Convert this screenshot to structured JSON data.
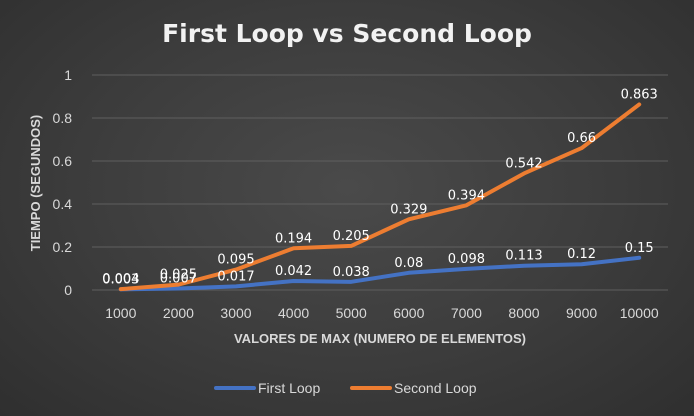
{
  "chart_data": {
    "type": "line",
    "title": "First Loop vs Second Loop",
    "xlabel": "VALORES DE MAX (NUMERO DE ELEMENTOS)",
    "ylabel": "TIEMPO (SEGUNDOS)",
    "categories": [
      "1000",
      "2000",
      "3000",
      "4000",
      "5000",
      "6000",
      "7000",
      "8000",
      "9000",
      "10000"
    ],
    "ylim": [
      0,
      1
    ],
    "yticks": [
      "0",
      "0.2",
      "0.4",
      "0.6",
      "0.8",
      "1"
    ],
    "grid": true,
    "legend_position": "bottom",
    "series": [
      {
        "name": "First Loop",
        "color": "#4472c4",
        "values": [
          0.003,
          0.007,
          0.017,
          0.042,
          0.038,
          0.08,
          0.098,
          0.113,
          0.12,
          0.15
        ],
        "labels": [
          "0.003",
          "0.007",
          "0.017",
          "0.042",
          "0.038",
          "0.08",
          "0.098",
          "0.113",
          "0.12",
          "0.15"
        ]
      },
      {
        "name": "Second Loop",
        "color": "#ed7d31",
        "values": [
          0.004,
          0.025,
          0.095,
          0.194,
          0.205,
          0.329,
          0.394,
          0.542,
          0.66,
          0.863
        ],
        "labels": [
          "0.004",
          "0.025",
          "0.095",
          "0.194",
          "0.205",
          "0.329",
          "0.394",
          "0.542",
          "0.66",
          "0.863"
        ]
      }
    ]
  }
}
